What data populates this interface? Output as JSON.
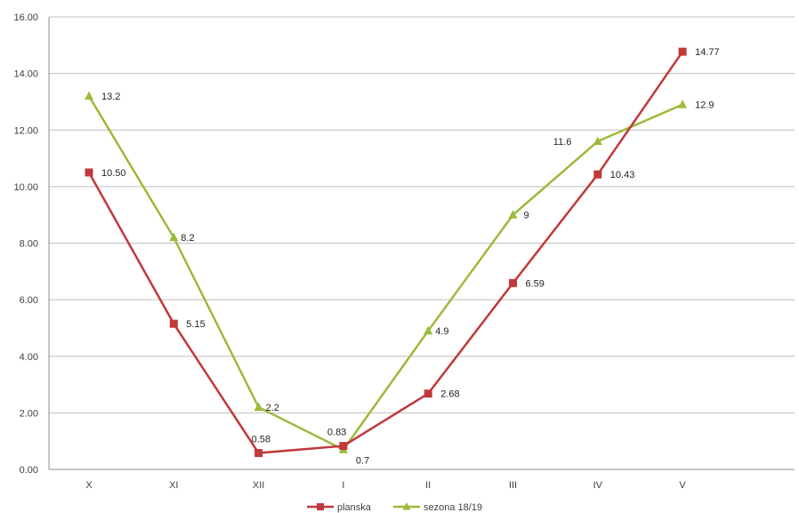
{
  "chart_data": {
    "type": "line",
    "title": "",
    "xlabel": "",
    "ylabel": "",
    "categories": [
      "X",
      "XI",
      "XII",
      "I",
      "II",
      "III",
      "IV",
      "V"
    ],
    "ylim": [
      0,
      16
    ],
    "yticks": [
      "0.00",
      "2.00",
      "4.00",
      "6.00",
      "8.00",
      "10.00",
      "12.00",
      "14.00",
      "16.00"
    ],
    "grid": true,
    "legend_position": "bottom",
    "series": [
      {
        "name": "planska",
        "color": "#c0393b",
        "marker": "square",
        "values": [
          10.5,
          5.15,
          0.58,
          0.83,
          2.68,
          6.59,
          10.43,
          14.77
        ],
        "labels": [
          "10.50",
          "5.15",
          "0.58",
          "0.83",
          "2.68",
          "6.59",
          "10.43",
          "14.77"
        ]
      },
      {
        "name": "sezona 18/19",
        "color": "#9bbb3a",
        "marker": "triangle",
        "values": [
          13.2,
          8.2,
          2.2,
          0.7,
          4.9,
          9,
          11.6,
          12.9
        ],
        "labels": [
          "13.2",
          "8.2",
          "2.2",
          "0.7",
          "4.9",
          "9",
          "11.6",
          "12.9"
        ]
      }
    ]
  }
}
